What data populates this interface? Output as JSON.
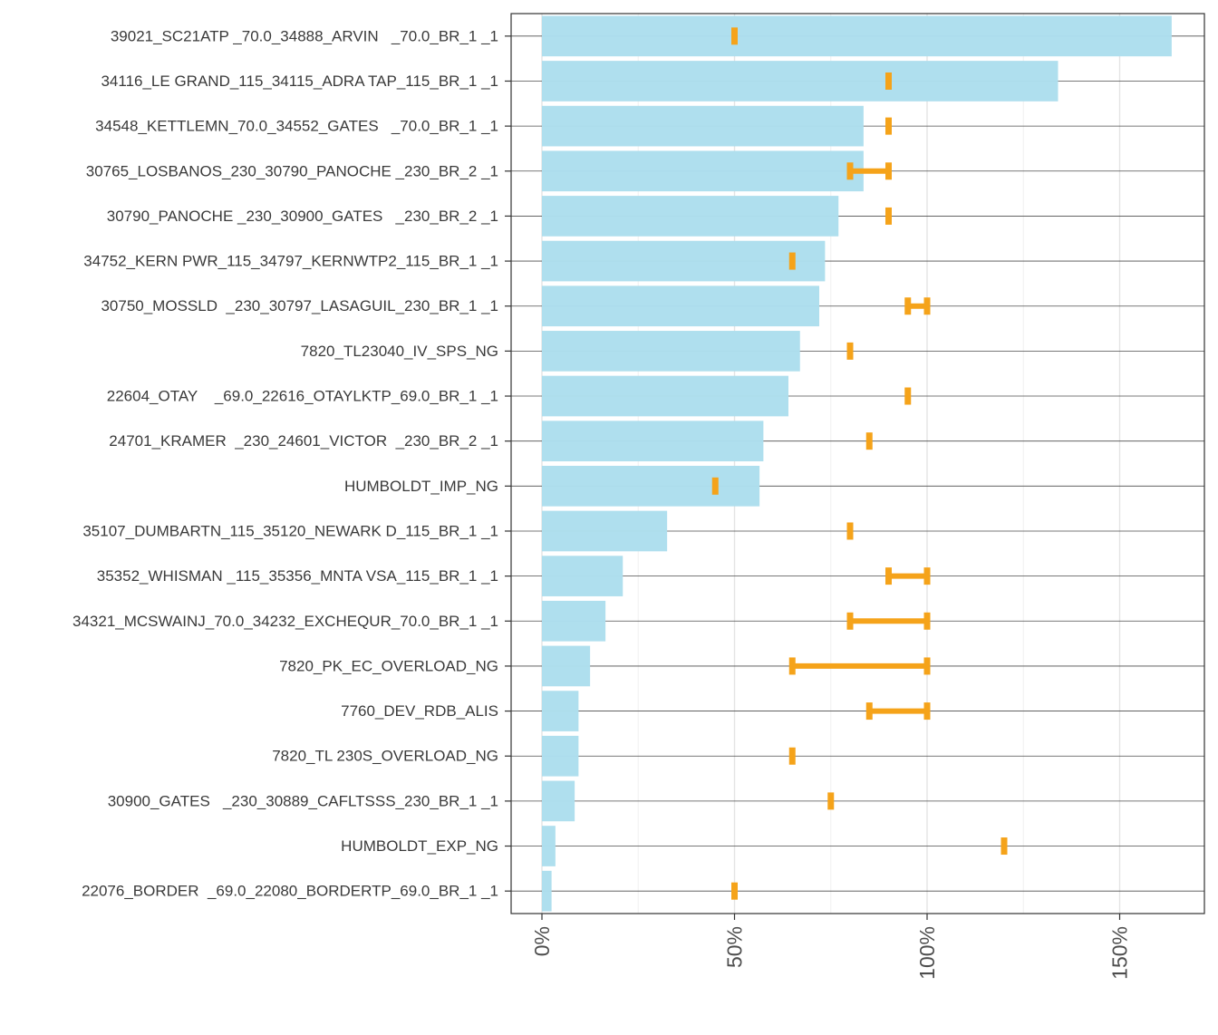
{
  "chart_data": {
    "type": "bar",
    "orientation": "horizontal",
    "categories": [
      "39021_SC21ATP _70.0_34888_ARVIN   _70.0_BR_1 _1",
      "34116_LE GRAND_115_34115_ADRA TAP_115_BR_1 _1",
      "34548_KETTLEMN_70.0_34552_GATES   _70.0_BR_1 _1",
      "30765_LOSBANOS_230_30790_PANOCHE _230_BR_2 _1",
      "30790_PANOCHE _230_30900_GATES   _230_BR_2 _1",
      "34752_KERN PWR_115_34797_KERNWTP2_115_BR_1 _1",
      "30750_MOSSLD  _230_30797_LASAGUIL_230_BR_1 _1",
      "7820_TL23040_IV_SPS_NG",
      "22604_OTAY    _69.0_22616_OTAYLKTP_69.0_BR_1 _1",
      "24701_KRAMER  _230_24601_VICTOR  _230_BR_2 _1",
      "HUMBOLDT_IMP_NG",
      "35107_DUMBARTN_115_35120_NEWARK D_115_BR_1 _1",
      "35352_WHISMAN _115_35356_MNTA VSA_115_BR_1 _1",
      "34321_MCSWAINJ_70.0_34232_EXCHEQUR_70.0_BR_1 _1",
      "7820_PK_EC_OVERLOAD_NG",
      "7760_DEV_RDB_ALIS",
      "7820_TL 230S_OVERLOAD_NG",
      "30900_GATES   _230_30889_CAFLTSSS_230_BR_1 _1",
      "HUMBOLDT_EXP_NG",
      "22076_BORDER  _69.0_22080_BORDERTP_69.0_BR_1 _1"
    ],
    "values": [
      163.5,
      134,
      83.5,
      83.5,
      77,
      73.5,
      72,
      67,
      64,
      57.5,
      56.5,
      32.5,
      21,
      16.5,
      12.5,
      9.5,
      9.5,
      8.5,
      3.5,
      2.5
    ],
    "range_low": [
      50,
      90,
      90,
      80,
      90,
      65,
      95,
      80,
      95,
      85,
      45,
      80,
      90,
      80,
      65,
      85,
      65,
      75,
      120,
      50
    ],
    "range_high": [
      50,
      90,
      90,
      90,
      90,
      65,
      100,
      80,
      95,
      85,
      45,
      80,
      100,
      100,
      100,
      100,
      65,
      75,
      120,
      50
    ],
    "xlim": [
      -8,
      172
    ],
    "x_ticks": [
      0,
      50,
      100,
      150
    ],
    "x_tick_labels": [
      "0%",
      "50%",
      "100%",
      "150%"
    ],
    "x_minor_ticks": [
      25,
      75,
      125
    ],
    "grid": true,
    "title": "",
    "xlabel": "",
    "ylabel": "",
    "colors": {
      "bar": "#ADDEEE",
      "range": "#F5A31A",
      "grid_major": "#e3e3e3",
      "grid_minor": "#f0f0f0",
      "row_line": "#4d4d4d",
      "panel_border": "#333333"
    }
  }
}
